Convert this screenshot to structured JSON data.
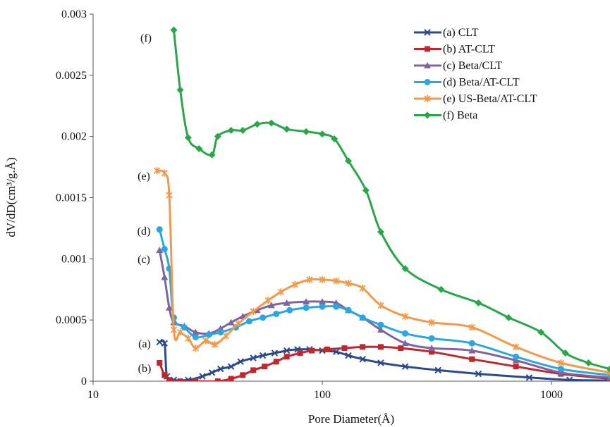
{
  "chart_data": {
    "type": "line",
    "title": "",
    "xlabel": "Pore Diameter(Å)",
    "ylabel": "dV/dD(cm³/g.Å)",
    "xscale": "log",
    "xlim": [
      10,
      1800
    ],
    "ylim": [
      0,
      0.003
    ],
    "x_ticks": [
      10,
      100,
      1000
    ],
    "x_tick_labels": [
      "10",
      "100",
      "1000"
    ],
    "y_ticks": [
      0,
      0.0005,
      0.001,
      0.0015,
      0.002,
      0.0025,
      0.003
    ],
    "y_tick_labels": [
      "0",
      "0.0005",
      "0.001",
      "0.0015",
      "0.002",
      "0.0025",
      "0.003"
    ],
    "grid": false,
    "legend_position": "top-right",
    "series": [
      {
        "name": "(a) CLT",
        "label": "(a)",
        "color": "#2a4a8c",
        "marker": "x",
        "points": [
          [
            19.5,
            0.00032
          ],
          [
            20.5,
            0.00031
          ],
          [
            21,
            4e-05
          ],
          [
            22.5,
            1e-05
          ],
          [
            26,
            1e-05
          ],
          [
            30,
            4e-05
          ],
          [
            33,
            7e-05
          ],
          [
            36,
            0.0001
          ],
          [
            40,
            0.00012
          ],
          [
            44,
            0.00016
          ],
          [
            50,
            0.00019
          ],
          [
            55,
            0.00021
          ],
          [
            62,
            0.00023
          ],
          [
            70,
            0.00025
          ],
          [
            78,
            0.00026
          ],
          [
            88,
            0.00026
          ],
          [
            100,
            0.00025
          ],
          [
            115,
            0.00024
          ],
          [
            130,
            0.00021
          ],
          [
            150,
            0.00018
          ],
          [
            180,
            0.00015
          ],
          [
            230,
            0.00012
          ],
          [
            320,
            9e-05
          ],
          [
            480,
            6e-05
          ],
          [
            800,
            3e-05
          ],
          [
            1200,
            1e-05
          ],
          [
            1800,
            5e-06
          ]
        ]
      },
      {
        "name": "(b) AT-CLT",
        "label": "(b)",
        "color": "#c0272d",
        "marker": "square",
        "points": [
          [
            19.5,
            0.00015
          ],
          [
            20.5,
            5e-05
          ],
          [
            21.5,
            1e-05
          ],
          [
            24,
            0.0
          ],
          [
            28,
            0.0
          ],
          [
            35,
            0.0
          ],
          [
            40,
            2e-05
          ],
          [
            45,
            5e-05
          ],
          [
            50,
            9e-05
          ],
          [
            56,
            0.00012
          ],
          [
            63,
            0.00016
          ],
          [
            70,
            0.0002
          ],
          [
            80,
            0.00023
          ],
          [
            90,
            0.00025
          ],
          [
            105,
            0.00026
          ],
          [
            125,
            0.00027
          ],
          [
            150,
            0.00028
          ],
          [
            180,
            0.00028
          ],
          [
            220,
            0.00027
          ],
          [
            300,
            0.00024
          ],
          [
            450,
            0.00018
          ],
          [
            700,
            0.00012
          ],
          [
            1100,
            6e-05
          ],
          [
            1800,
            2e-05
          ]
        ]
      },
      {
        "name": "(c) Beta/CLT",
        "label": "(c)",
        "color": "#8064a2",
        "marker": "triangle",
        "points": [
          [
            19.5,
            0.00107
          ],
          [
            20.5,
            0.00085
          ],
          [
            21.5,
            0.0006
          ],
          [
            22.5,
            0.00048
          ],
          [
            25,
            0.00045
          ],
          [
            28,
            0.0004
          ],
          [
            32,
            0.00039
          ],
          [
            36,
            0.00043
          ],
          [
            40,
            0.00048
          ],
          [
            45,
            0.00053
          ],
          [
            52,
            0.00058
          ],
          [
            60,
            0.00062
          ],
          [
            70,
            0.00064
          ],
          [
            85,
            0.00065
          ],
          [
            100,
            0.00065
          ],
          [
            115,
            0.00064
          ],
          [
            130,
            0.00058
          ],
          [
            150,
            0.00052
          ],
          [
            180,
            0.00042
          ],
          [
            230,
            0.00031
          ],
          [
            300,
            0.00027
          ],
          [
            450,
            0.00025
          ],
          [
            700,
            0.00017
          ],
          [
            1100,
            7e-05
          ],
          [
            1800,
            3e-05
          ]
        ]
      },
      {
        "name": "(d) Beta/AT-CLT",
        "label": "(d)",
        "color": "#2aa6e0",
        "marker": "circle",
        "points": [
          [
            19.5,
            0.00124
          ],
          [
            20.5,
            0.00108
          ],
          [
            21.5,
            0.00092
          ],
          [
            22.5,
            0.00052
          ],
          [
            25,
            0.00044
          ],
          [
            28,
            0.00036
          ],
          [
            32,
            0.00038
          ],
          [
            36,
            0.0004
          ],
          [
            42,
            0.00044
          ],
          [
            48,
            0.00049
          ],
          [
            55,
            0.00052
          ],
          [
            63,
            0.00055
          ],
          [
            72,
            0.00058
          ],
          [
            85,
            0.0006
          ],
          [
            100,
            0.00061
          ],
          [
            115,
            0.00061
          ],
          [
            130,
            0.00058
          ],
          [
            150,
            0.00052
          ],
          [
            180,
            0.00046
          ],
          [
            230,
            0.00039
          ],
          [
            300,
            0.00035
          ],
          [
            450,
            0.00031
          ],
          [
            700,
            0.0002
          ],
          [
            1100,
            0.0001
          ],
          [
            1800,
            5e-05
          ]
        ]
      },
      {
        "name": "(e) US-Beta/AT-CLT",
        "label": "(e)",
        "color": "#f39a4a",
        "marker": "star",
        "points": [
          [
            19,
            0.00172
          ],
          [
            20.5,
            0.0017
          ],
          [
            21.5,
            0.00152
          ],
          [
            22.5,
            0.00042
          ],
          [
            24,
            0.0004
          ],
          [
            26,
            0.00035
          ],
          [
            28,
            0.00027
          ],
          [
            31,
            0.00033
          ],
          [
            34,
            0.0003
          ],
          [
            38,
            0.00037
          ],
          [
            43,
            0.00047
          ],
          [
            50,
            0.00057
          ],
          [
            58,
            0.00066
          ],
          [
            66,
            0.00073
          ],
          [
            76,
            0.00079
          ],
          [
            88,
            0.00083
          ],
          [
            100,
            0.00083
          ],
          [
            115,
            0.00082
          ],
          [
            130,
            0.0008
          ],
          [
            150,
            0.00076
          ],
          [
            180,
            0.00062
          ],
          [
            230,
            0.00053
          ],
          [
            300,
            0.00048
          ],
          [
            450,
            0.00044
          ],
          [
            700,
            0.00028
          ],
          [
            1100,
            0.00015
          ],
          [
            1800,
            7e-05
          ]
        ]
      },
      {
        "name": "(f) Beta",
        "label": "(f)",
        "color": "#2aa64a",
        "marker": "diamond",
        "points": [
          [
            22.5,
            0.00287
          ],
          [
            24,
            0.00238
          ],
          [
            26,
            0.00199
          ],
          [
            29,
            0.0019
          ],
          [
            33,
            0.00185
          ],
          [
            35,
            0.002
          ],
          [
            40,
            0.00205
          ],
          [
            45,
            0.00205
          ],
          [
            52,
            0.0021
          ],
          [
            60,
            0.00211
          ],
          [
            70,
            0.00206
          ],
          [
            85,
            0.00204
          ],
          [
            100,
            0.00202
          ],
          [
            113,
            0.00198
          ],
          [
            130,
            0.0018
          ],
          [
            155,
            0.00156
          ],
          [
            180,
            0.00122
          ],
          [
            230,
            0.00092
          ],
          [
            330,
            0.00075
          ],
          [
            480,
            0.00064
          ],
          [
            650,
            0.00052
          ],
          [
            900,
            0.0004
          ],
          [
            1150,
            0.00023
          ],
          [
            1450,
            0.00015
          ],
          [
            1800,
            0.0001
          ]
        ]
      }
    ]
  }
}
